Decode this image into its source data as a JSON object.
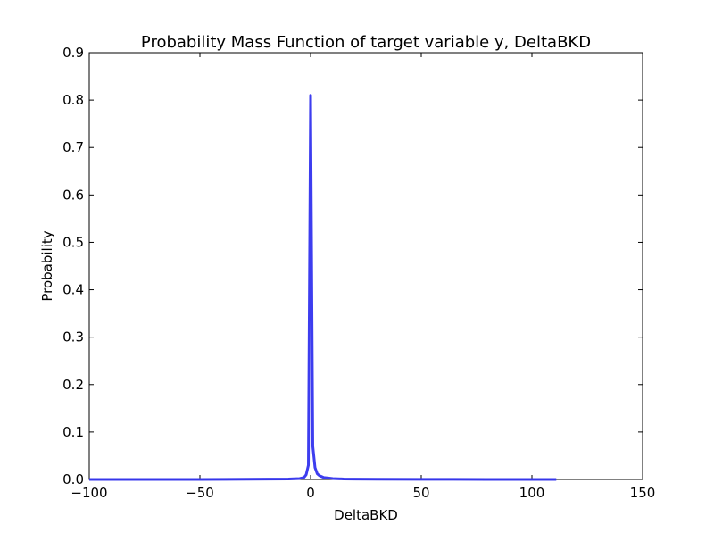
{
  "chart_data": {
    "type": "line",
    "title": "Probability Mass Function of target variable y, DeltaBKD",
    "xlabel": "DeltaBKD",
    "ylabel": "Probability",
    "xlim": [
      -100,
      150
    ],
    "ylim": [
      0,
      0.9
    ],
    "xticks": [
      -100,
      -50,
      0,
      50,
      100,
      150
    ],
    "xtick_labels": [
      "−100",
      "−50",
      "0",
      "50",
      "100",
      "150"
    ],
    "yticks": [
      0.0,
      0.1,
      0.2,
      0.3,
      0.4,
      0.5,
      0.6,
      0.7,
      0.8,
      0.9
    ],
    "ytick_labels": [
      "0.0",
      "0.1",
      "0.2",
      "0.3",
      "0.4",
      "0.5",
      "0.6",
      "0.7",
      "0.8",
      "0.9"
    ],
    "grid": false,
    "series": [
      {
        "color": "#3333ee",
        "x": [
          -100,
          -50,
          -10,
          -5,
          -3,
          -2,
          -1,
          0,
          1,
          2,
          3,
          4,
          5,
          6,
          8,
          10,
          15,
          20,
          30,
          50,
          80,
          111
        ],
        "y": [
          0.0,
          0.0,
          0.001,
          0.002,
          0.004,
          0.01,
          0.03,
          0.81,
          0.07,
          0.025,
          0.012,
          0.008,
          0.006,
          0.004,
          0.003,
          0.002,
          0.001,
          0.0008,
          0.0005,
          0.0003,
          0.0001,
          0.0
        ]
      }
    ]
  }
}
